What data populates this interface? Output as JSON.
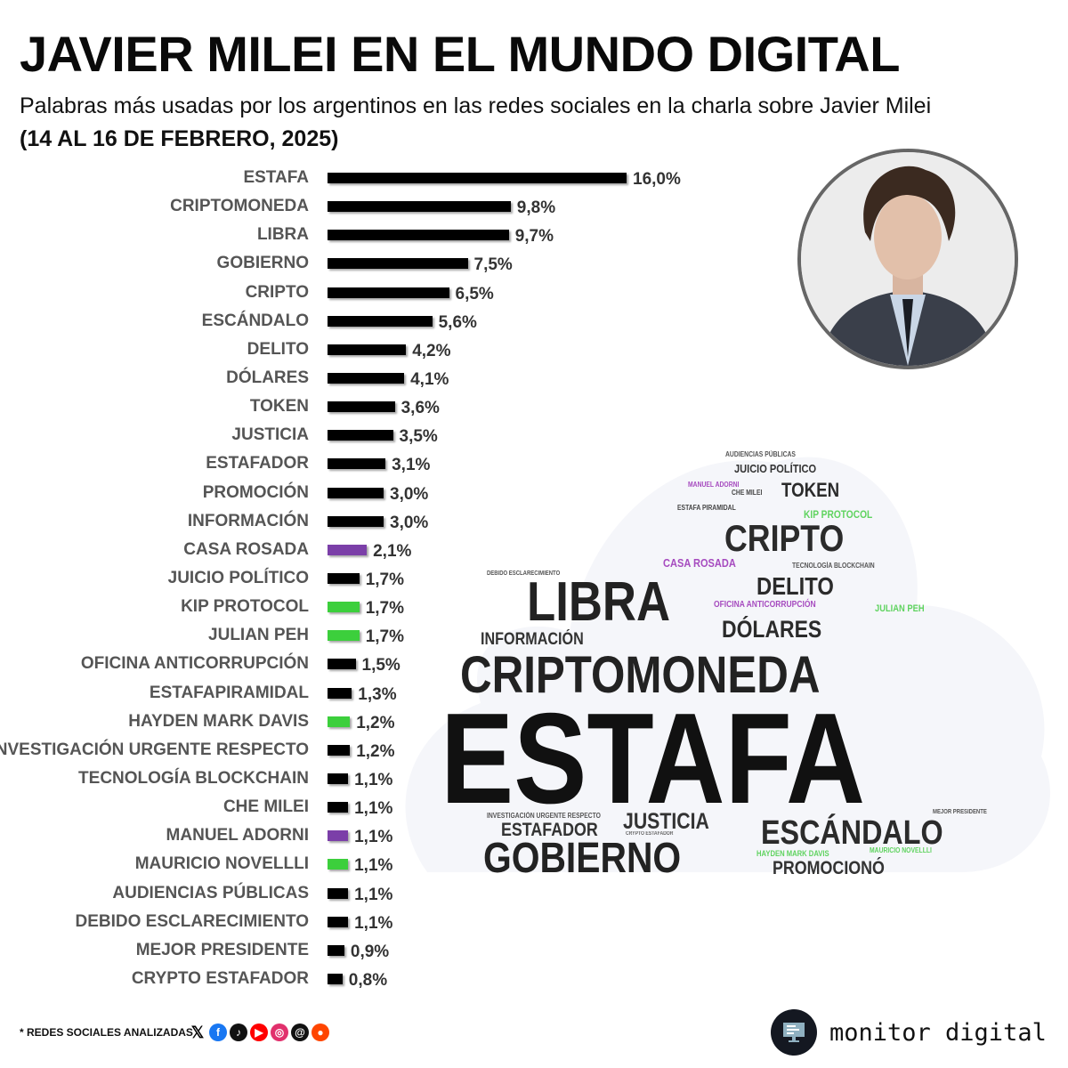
{
  "title": "JAVIER MILEI EN EL MUNDO DIGITAL",
  "subtitle": "Palabras más usadas por los argentinos en las redes sociales en la charla sobre Javier Milei",
  "date_range": "(14 AL 16 DE FEBRERO, 2025)",
  "colors": {
    "default": "#000000",
    "purple": "#7b3fa8",
    "green": "#3ccf3c"
  },
  "chart_data": {
    "type": "bar",
    "orientation": "horizontal",
    "unit": "%",
    "categories": [
      "ESTAFA",
      "CRIPTOMONEDA",
      "LIBRA",
      "GOBIERNO",
      "CRIPTO",
      "ESCÁNDALO",
      "DELITO",
      "DÓLARES",
      "TOKEN",
      "JUSTICIA",
      "ESTAFADOR",
      "PROMOCIÓN",
      "INFORMACIÓN",
      "CASA ROSADA",
      "JUICIO POLÍTICO",
      "KIP PROTOCOL",
      "JULIAN PEH",
      "OFICINA ANTICORRUPCIÓN",
      "ESTAFAPIRAMIDAL",
      "HAYDEN MARK DAVIS",
      "INVESTIGACIÓN URGENTE RESPECTO",
      "TECNOLOGÍA BLOCKCHAIN",
      "CHE MILEI",
      "MANUEL ADORNI",
      "MAURICIO NOVELLLI",
      "AUDIENCIAS PÚBLICAS",
      "DEBIDO ESCLARECIMIENTO",
      "MEJOR PRESIDENTE",
      "CRYPTO ESTAFADOR"
    ],
    "values": [
      16.0,
      9.8,
      9.7,
      7.5,
      6.5,
      5.6,
      4.2,
      4.1,
      3.6,
      3.5,
      3.1,
      3.0,
      3.0,
      2.1,
      1.7,
      1.7,
      1.7,
      1.5,
      1.3,
      1.2,
      1.2,
      1.1,
      1.1,
      1.1,
      1.1,
      1.1,
      1.1,
      0.9,
      0.8
    ],
    "value_labels": [
      "16,0%",
      "9,8%",
      "9,7%",
      "7,5%",
      "6,5%",
      "5,6%",
      "4,2%",
      "4,1%",
      "3,6%",
      "3,5%",
      "3,1%",
      "3,0%",
      "3,0%",
      "2,1%",
      "1,7%",
      "1,7%",
      "1,7%",
      "1,5%",
      "1,3%",
      "1,2%",
      "1,2%",
      "1,1%",
      "1,1%",
      "1,1%",
      "1,1%",
      "1,1%",
      "1,1%",
      "0,9%",
      "0,8%"
    ],
    "bar_colors": [
      "default",
      "default",
      "default",
      "default",
      "default",
      "default",
      "default",
      "default",
      "default",
      "default",
      "default",
      "default",
      "default",
      "purple",
      "default",
      "green",
      "green",
      "default",
      "default",
      "green",
      "default",
      "default",
      "default",
      "purple",
      "green",
      "default",
      "default",
      "default",
      "default"
    ]
  },
  "word_cloud": [
    {
      "text": "AUDIENCIAS PÚBLICAS",
      "color": "#555"
    },
    {
      "text": "JUICIO POLÍTICO",
      "color": "#333"
    },
    {
      "text": "MANUEL ADORNI",
      "color": "#a64bbf"
    },
    {
      "text": "CHE MILEI",
      "color": "#444"
    },
    {
      "text": "TOKEN",
      "color": "#2b2b2b"
    },
    {
      "text": "ESTAFA PIRAMIDAL",
      "color": "#444"
    },
    {
      "text": "KIP PROTOCOL",
      "color": "#5fd35f"
    },
    {
      "text": "CRIPTO",
      "color": "#2b2b2b"
    },
    {
      "text": "CASA ROSADA",
      "color": "#a64bbf"
    },
    {
      "text": "TECNOLOGÍA BLOCKCHAIN",
      "color": "#555"
    },
    {
      "text": "DEBIDO ESCLARECIMIENTO",
      "color": "#555"
    },
    {
      "text": "LIBRA",
      "color": "#222"
    },
    {
      "text": "DELITO",
      "color": "#2b2b2b"
    },
    {
      "text": "OFICINA ANTICORRUPCIÓN",
      "color": "#a64bbf"
    },
    {
      "text": "JULIAN PEH",
      "color": "#5fd35f"
    },
    {
      "text": "INFORMACIÓN",
      "color": "#333"
    },
    {
      "text": "DÓLARES",
      "color": "#2b2b2b"
    },
    {
      "text": "CRIPTOMONEDA",
      "color": "#222"
    },
    {
      "text": "ESTAFA",
      "color": "#111"
    },
    {
      "text": "MEJOR PRESIDENTE",
      "color": "#555"
    },
    {
      "text": "INVESTIGACIÓN URGENTE RESPECTO",
      "color": "#555"
    },
    {
      "text": "JUSTICIA",
      "color": "#333"
    },
    {
      "text": "ESTAFADOR",
      "color": "#333"
    },
    {
      "text": "CRYPTO ESTAFADOR",
      "color": "#666"
    },
    {
      "text": "ESCÁNDALO",
      "color": "#2b2b2b"
    },
    {
      "text": "HAYDEN MARK DAVIS",
      "color": "#5fd35f"
    },
    {
      "text": "MAURICIO NOVELLLI",
      "color": "#5fd35f"
    },
    {
      "text": "GOBIERNO",
      "color": "#222"
    },
    {
      "text": "PROMOCIONÓ",
      "color": "#333"
    }
  ],
  "footer": {
    "note": "* REDES SOCIALES ANALIZADAS",
    "socials": [
      {
        "icon": "x-icon",
        "glyph": "𝕏",
        "color": "#000000"
      },
      {
        "icon": "facebook-icon",
        "glyph": "f",
        "color": "#1877f2"
      },
      {
        "icon": "tiktok-icon",
        "glyph": "♪",
        "color": "#111111"
      },
      {
        "icon": "youtube-icon",
        "glyph": "▶",
        "color": "#ff0000"
      },
      {
        "icon": "instagram-icon",
        "glyph": "◎",
        "color": "#e1306c"
      },
      {
        "icon": "threads-icon",
        "glyph": "@",
        "color": "#111111"
      },
      {
        "icon": "reddit-icon",
        "glyph": "●",
        "color": "#ff4500"
      }
    ],
    "brand": "monitor digital"
  }
}
